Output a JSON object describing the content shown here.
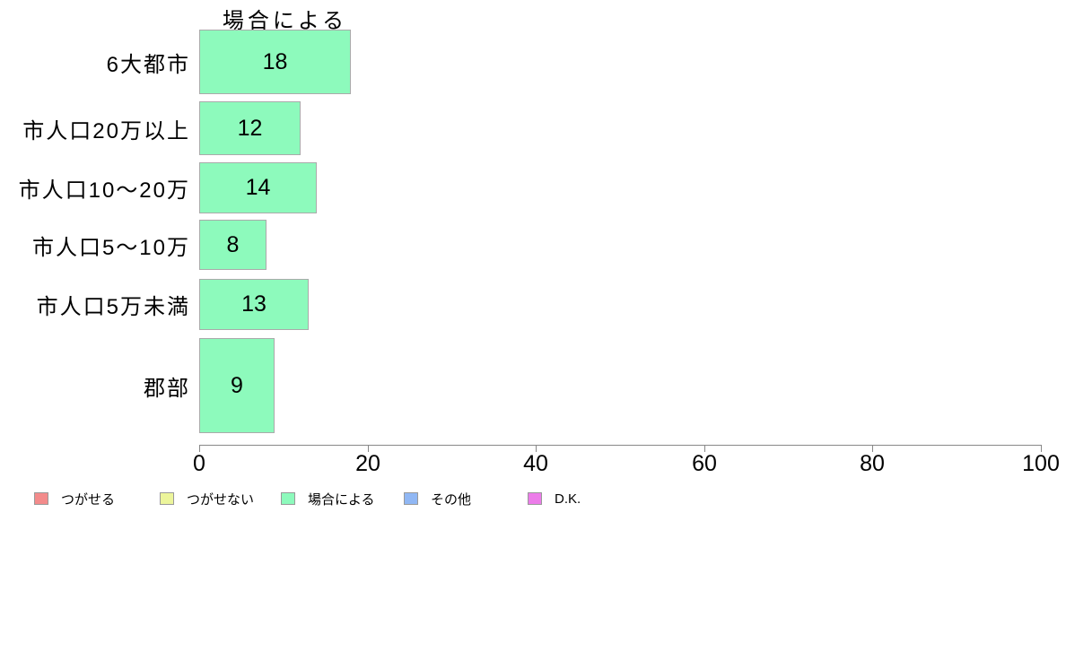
{
  "page": {
    "background_color": "#ffffff"
  },
  "chart_data": {
    "type": "bar",
    "orientation": "horizontal",
    "title": "場合による",
    "categories": [
      "6大都市",
      "市人口20万以上",
      "市人口10〜20万",
      "市人口5〜10万",
      "市人口5万未満",
      "郡部"
    ],
    "values": [
      18,
      12,
      14,
      8,
      13,
      9
    ],
    "value_label_position": "inside-center",
    "xlabel": "",
    "ylabel": "",
    "xlim": [
      0,
      100
    ],
    "x_ticks": [
      0,
      20,
      40,
      60,
      80,
      100
    ],
    "grid": false,
    "bar_color": "#8DFABC",
    "bar_border_color": "#aaaaaa",
    "axis_color": "#888888",
    "text_color": "#000000",
    "legend_position": "bottom-left",
    "legend": [
      {
        "label": "つがせる",
        "color": "#F38B8B",
        "icon": "square-swatch-icon"
      },
      {
        "label": "つがせない",
        "color": "#ECF59B",
        "icon": "square-swatch-icon"
      },
      {
        "label": "場合による",
        "color": "#8DFABC",
        "icon": "square-swatch-icon"
      },
      {
        "label": "その他",
        "color": "#90B7F4",
        "icon": "square-swatch-icon"
      },
      {
        "label": "D.K.",
        "color": "#EC7CE9",
        "icon": "square-swatch-icon"
      }
    ]
  }
}
